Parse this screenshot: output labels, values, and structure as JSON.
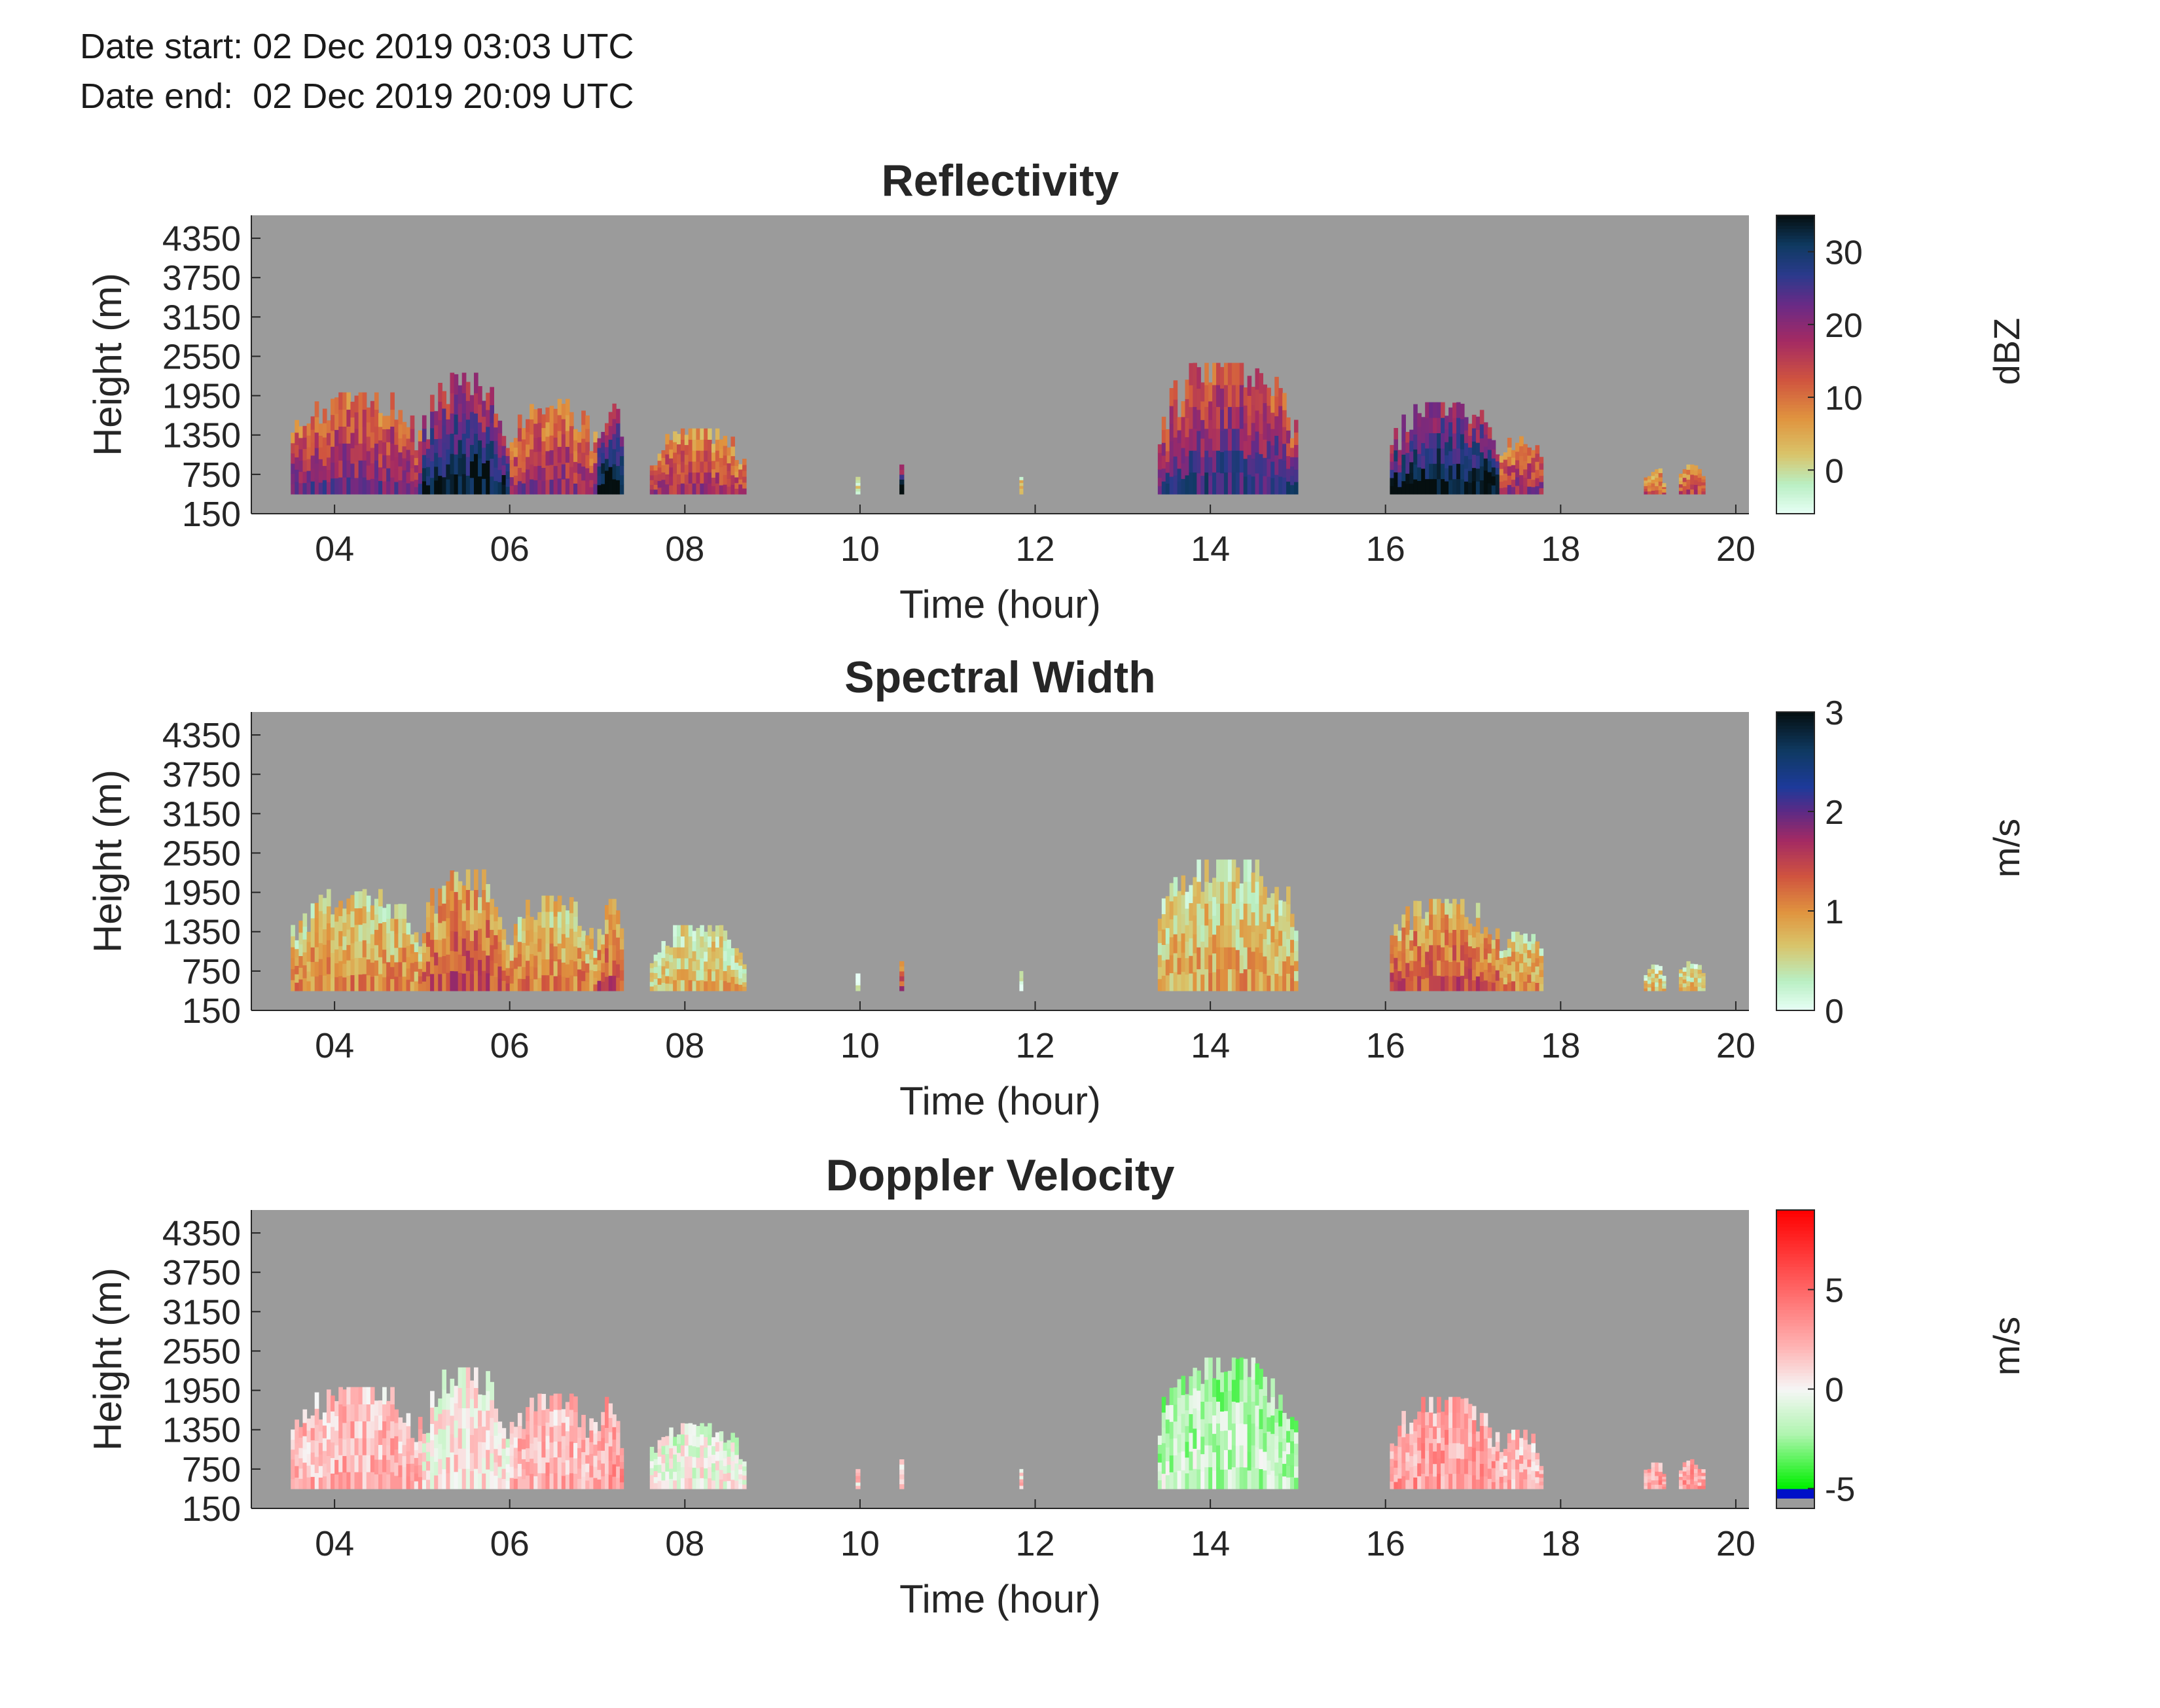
{
  "header": {
    "date_start": "Date start: 02 Dec 2019 03:03 UTC",
    "date_end": "Date end:  02 Dec 2019 20:09 UTC"
  },
  "chart_data": [
    {
      "type": "heatmap",
      "title": "Reflectivity",
      "xlabel": "Time (hour)",
      "ylabel": "Height (m)",
      "xticks": [
        "04",
        "06",
        "08",
        "10",
        "12",
        "14",
        "16",
        "18",
        "20"
      ],
      "yticks": [
        "150",
        "750",
        "1350",
        "1950",
        "2550",
        "3150",
        "3750",
        "4350"
      ],
      "xlim": [
        3.05,
        20.15
      ],
      "ylim": [
        150,
        4700
      ],
      "colorbar": {
        "label": "dBZ",
        "ticks": [
          "0",
          "10",
          "20",
          "30"
        ],
        "range": [
          -6,
          35
        ],
        "map": "reflectivity"
      },
      "background": "#9b9b9b",
      "echo_segments": [
        {
          "t0": 3.5,
          "t1": 5.0,
          "top": 2000,
          "intensity": 0.6
        },
        {
          "t0": 5.0,
          "t1": 6.0,
          "top": 2300,
          "intensity": 0.85
        },
        {
          "t0": 6.0,
          "t1": 7.0,
          "top": 1900,
          "intensity": 0.55
        },
        {
          "t0": 7.0,
          "t1": 7.3,
          "top": 1850,
          "intensity": 0.9
        },
        {
          "t0": 7.6,
          "t1": 8.7,
          "top": 1450,
          "intensity": 0.5
        },
        {
          "t0": 9.95,
          "t1": 10.0,
          "top": 750,
          "intensity": 0.15
        },
        {
          "t0": 10.45,
          "t1": 10.5,
          "top": 900,
          "intensity": 0.9
        },
        {
          "t0": 11.82,
          "t1": 11.86,
          "top": 750,
          "intensity": 0.3
        },
        {
          "t0": 13.4,
          "t1": 15.0,
          "top": 2450,
          "intensity": 0.7
        },
        {
          "t0": 16.05,
          "t1": 17.3,
          "top": 1850,
          "intensity": 0.9
        },
        {
          "t0": 17.3,
          "t1": 17.8,
          "top": 1350,
          "intensity": 0.55
        },
        {
          "t0": 18.95,
          "t1": 19.2,
          "top": 850,
          "intensity": 0.4
        },
        {
          "t0": 19.35,
          "t1": 19.65,
          "top": 900,
          "intensity": 0.45
        }
      ]
    },
    {
      "type": "heatmap",
      "title": "Spectral Width",
      "xlabel": "Time (hour)",
      "ylabel": "Height (m)",
      "xticks": [
        "04",
        "06",
        "08",
        "10",
        "12",
        "14",
        "16",
        "18",
        "20"
      ],
      "yticks": [
        "150",
        "750",
        "1350",
        "1950",
        "2550",
        "3150",
        "3750",
        "4350"
      ],
      "xlim": [
        3.05,
        20.15
      ],
      "ylim": [
        150,
        4700
      ],
      "colorbar": {
        "label": "m/s",
        "ticks": [
          "0",
          "1",
          "2",
          "3"
        ],
        "range": [
          0,
          3
        ],
        "map": "spectral"
      },
      "background": "#9b9b9b",
      "echo_segments": [
        {
          "t0": 3.5,
          "t1": 5.0,
          "top": 2000,
          "intensity": 0.3
        },
        {
          "t0": 5.0,
          "t1": 6.0,
          "top": 2300,
          "intensity": 0.42
        },
        {
          "t0": 6.0,
          "t1": 7.0,
          "top": 1900,
          "intensity": 0.32
        },
        {
          "t0": 7.0,
          "t1": 7.3,
          "top": 1850,
          "intensity": 0.4
        },
        {
          "t0": 7.6,
          "t1": 8.7,
          "top": 1450,
          "intensity": 0.22
        },
        {
          "t0": 9.95,
          "t1": 10.0,
          "top": 750,
          "intensity": 0.05
        },
        {
          "t0": 10.45,
          "t1": 10.5,
          "top": 900,
          "intensity": 0.45
        },
        {
          "t0": 11.82,
          "t1": 11.86,
          "top": 750,
          "intensity": 0.05
        },
        {
          "t0": 13.4,
          "t1": 15.0,
          "top": 2450,
          "intensity": 0.25
        },
        {
          "t0": 16.05,
          "t1": 17.3,
          "top": 1850,
          "intensity": 0.4
        },
        {
          "t0": 17.3,
          "t1": 17.8,
          "top": 1350,
          "intensity": 0.3
        },
        {
          "t0": 18.95,
          "t1": 19.2,
          "top": 850,
          "intensity": 0.2
        },
        {
          "t0": 19.35,
          "t1": 19.65,
          "top": 900,
          "intensity": 0.2
        }
      ]
    },
    {
      "type": "heatmap",
      "title": "Doppler Velocity",
      "xlabel": "Time (hour)",
      "ylabel": "Height (m)",
      "xticks": [
        "04",
        "06",
        "08",
        "10",
        "12",
        "14",
        "16",
        "18",
        "20"
      ],
      "yticks": [
        "150",
        "750",
        "1350",
        "1950",
        "2550",
        "3150",
        "3750",
        "4350"
      ],
      "xlim": [
        3.05,
        20.15
      ],
      "ylim": [
        150,
        4700
      ],
      "colorbar": {
        "label": "m/s",
        "ticks": [
          "-5",
          "0",
          "5"
        ],
        "range": [
          -6,
          9
        ],
        "map": "doppler"
      },
      "background": "#9b9b9b",
      "echo_segments": [
        {
          "t0": 3.5,
          "t1": 5.0,
          "top": 2000,
          "intensity": 0.55
        },
        {
          "t0": 5.0,
          "t1": 6.0,
          "top": 2300,
          "intensity": 0.45
        },
        {
          "t0": 6.0,
          "t1": 7.0,
          "top": 1900,
          "intensity": 0.55
        },
        {
          "t0": 7.0,
          "t1": 7.3,
          "top": 1850,
          "intensity": 0.6
        },
        {
          "t0": 7.6,
          "t1": 8.7,
          "top": 1450,
          "intensity": 0.4
        },
        {
          "t0": 9.95,
          "t1": 10.0,
          "top": 750,
          "intensity": 0.5
        },
        {
          "t0": 10.45,
          "t1": 10.5,
          "top": 900,
          "intensity": 0.5
        },
        {
          "t0": 11.82,
          "t1": 11.86,
          "top": 750,
          "intensity": 0.5
        },
        {
          "t0": 13.4,
          "t1": 15.0,
          "top": 2450,
          "intensity": 0.3
        },
        {
          "t0": 16.05,
          "t1": 17.3,
          "top": 1850,
          "intensity": 0.6
        },
        {
          "t0": 17.3,
          "t1": 17.8,
          "top": 1350,
          "intensity": 0.55
        },
        {
          "t0": 18.95,
          "t1": 19.2,
          "top": 850,
          "intensity": 0.6
        },
        {
          "t0": 19.35,
          "t1": 19.65,
          "top": 900,
          "intensity": 0.6
        }
      ]
    }
  ]
}
